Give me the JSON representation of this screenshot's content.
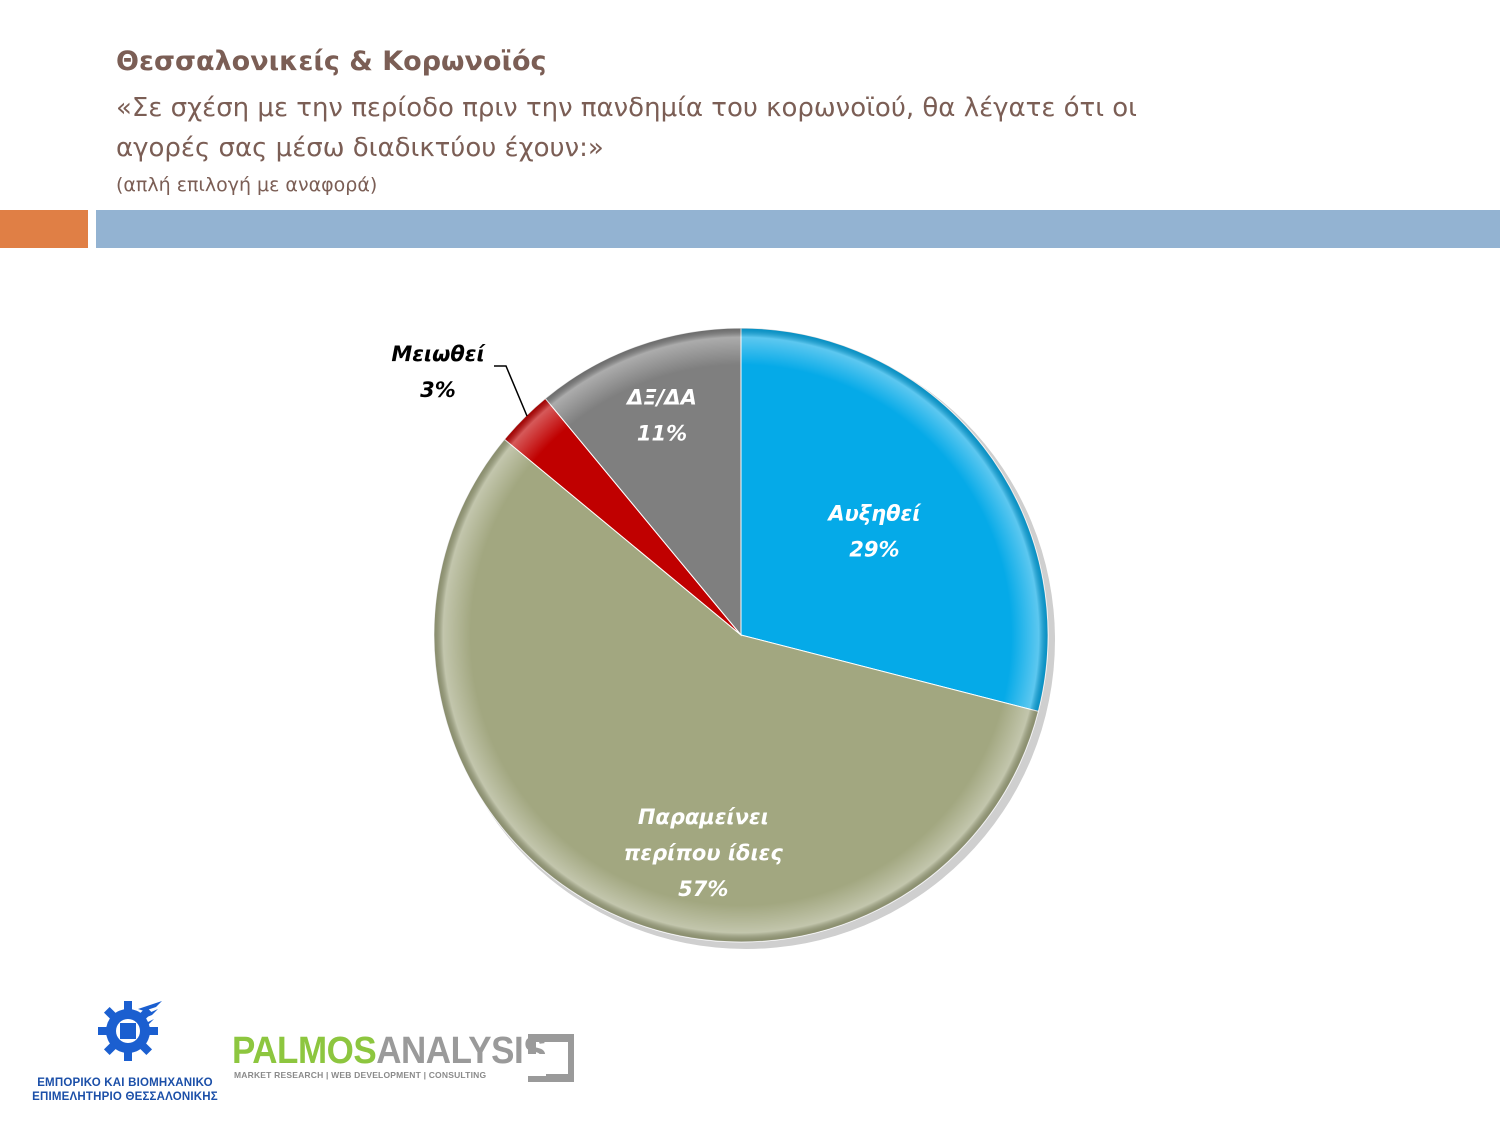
{
  "title": {
    "main": "Θεσσαλονικείς & Κορωνοϊός",
    "question_line1": "«Σε σχέση με την περίοδο πριν την πανδημία του κορωνοϊού, θα λέγατε ότι οι",
    "question_line2": "αγορές σας μέσω διαδικτύου έχουν:»",
    "note": "(απλή επιλογή με αναφορά)"
  },
  "colors": {
    "title": "#7b5e55",
    "accent_bar": "#e07f45",
    "header_bar": "#93b3d2"
  },
  "chart_data": {
    "type": "pie",
    "slices": [
      {
        "label": "Αυξηθεί",
        "value": 29,
        "display": "29%",
        "color": "#05aae8",
        "label_color": "#ffffff"
      },
      {
        "label": "Παραμείνει περίπου ίδιες",
        "label_lines": [
          "Παραμείνει",
          "περίπου ίδιες"
        ],
        "value": 57,
        "display": "57%",
        "color": "#a2a780",
        "label_color": "#ffffff"
      },
      {
        "label": "Μειωθεί",
        "value": 3,
        "display": "3%",
        "color": "#c00000",
        "label_color": "#000000",
        "callout": true
      },
      {
        "label": "ΔΞ/ΔΑ",
        "value": 11,
        "display": "11%",
        "color": "#7f7f7f",
        "label_color": "#ffffff"
      }
    ],
    "start": "12 o'clock",
    "direction": "clockwise",
    "legend": "none"
  },
  "logos": {
    "chamber_line1": "ΕΜΠΟΡΙΚΟ ΚΑΙ ΒΙΟΜΗΧΑΝΙΚΟ",
    "chamber_line2": "ΕΠΙΜΕΛΗΤΗΡΙΟ ΘΕΣΣΑΛΟΝΙΚΗΣ",
    "palmos_part1": "PALMOS",
    "palmos_part2": "ANALYSIS",
    "palmos_tagline": "MARKET RESEARCH | WEB DEVELOPMENT | CONSULTING"
  }
}
